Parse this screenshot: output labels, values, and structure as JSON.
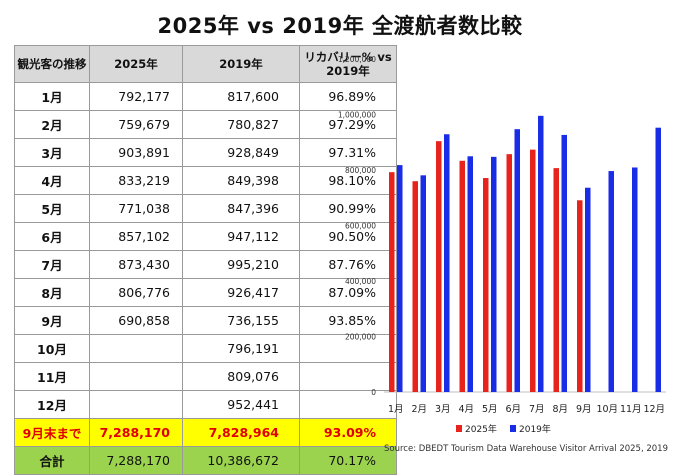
{
  "title": "2025年 vs 2019年 全渡航者数比較",
  "table": {
    "headers": [
      "観光客の推移",
      "2025年",
      "2019年",
      "リカバリー% vs 2019年"
    ],
    "rows": [
      {
        "month": "1月",
        "v2025": "792,177",
        "v2019": "817,600",
        "pct": "96.89%"
      },
      {
        "month": "2月",
        "v2025": "759,679",
        "v2019": "780,827",
        "pct": "97.29%"
      },
      {
        "month": "3月",
        "v2025": "903,891",
        "v2019": "928,849",
        "pct": "97.31%"
      },
      {
        "month": "4月",
        "v2025": "833,219",
        "v2019": "849,398",
        "pct": "98.10%"
      },
      {
        "month": "5月",
        "v2025": "771,038",
        "v2019": "847,396",
        "pct": "90.99%"
      },
      {
        "month": "6月",
        "v2025": "857,102",
        "v2019": "947,112",
        "pct": "90.50%"
      },
      {
        "month": "7月",
        "v2025": "873,430",
        "v2019": "995,210",
        "pct": "87.76%"
      },
      {
        "month": "8月",
        "v2025": "806,776",
        "v2019": "926,417",
        "pct": "87.09%"
      },
      {
        "month": "9月",
        "v2025": "690,858",
        "v2019": "736,155",
        "pct": "93.85%"
      },
      {
        "month": "10月",
        "v2025": "",
        "v2019": "796,191",
        "pct": ""
      },
      {
        "month": "11月",
        "v2025": "",
        "v2019": "809,076",
        "pct": ""
      },
      {
        "month": "12月",
        "v2025": "",
        "v2019": "952,441",
        "pct": ""
      }
    ],
    "subtotal": {
      "label": "9月末まで",
      "v2025": "7,288,170",
      "v2019": "7,828,964",
      "pct": "93.09%"
    },
    "total": {
      "label": "合計",
      "v2025": "7,288,170",
      "v2019": "10,386,672",
      "pct": "70.17%"
    }
  },
  "chart_data": {
    "type": "bar",
    "categories": [
      "1月",
      "2月",
      "3月",
      "4月",
      "5月",
      "6月",
      "7月",
      "8月",
      "9月",
      "10月",
      "11月",
      "12月"
    ],
    "series": [
      {
        "name": "2025年",
        "color": "#e8231c",
        "values": [
          792177,
          759679,
          903891,
          833219,
          771038,
          857102,
          873430,
          806776,
          690858,
          null,
          null,
          null
        ]
      },
      {
        "name": "2019年",
        "color": "#1a2de6",
        "values": [
          817600,
          780827,
          928849,
          849398,
          847396,
          947112,
          995210,
          926417,
          736155,
          796191,
          809076,
          952441
        ]
      }
    ],
    "ylim": [
      0,
      1200000
    ],
    "yticks": [
      "0",
      "200,000",
      "400,000",
      "600,000",
      "800,000",
      "1,000,000",
      "1,200,000"
    ],
    "ytick_values": [
      0,
      200000,
      400000,
      600000,
      800000,
      1000000,
      1200000
    ],
    "legend": "bottom",
    "grid": false
  },
  "source": "Source: DBEDT Tourism Data Warehouse Visitor Arrival 2025, 2019"
}
